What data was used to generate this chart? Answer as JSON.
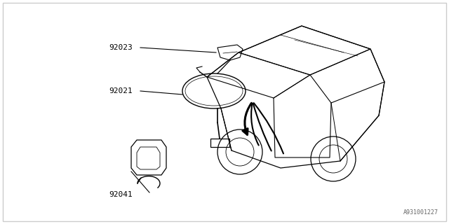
{
  "background_color": "#ffffff",
  "border_color": "#cccccc",
  "diagram_id": "A931001227",
  "text_color": "#000000",
  "line_color": "#000000",
  "part_font_size": 8
}
